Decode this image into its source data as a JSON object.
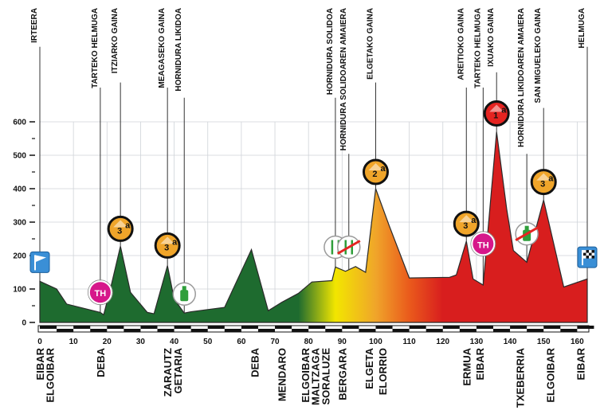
{
  "chart_data": {
    "type": "area",
    "title": "",
    "xlabel": "",
    "ylabel": "",
    "xlim": [
      0,
      163
    ],
    "ylim": [
      0,
      600
    ],
    "x_ticks": [
      0,
      10,
      20,
      30,
      40,
      50,
      60,
      70,
      80,
      90,
      100,
      110,
      120,
      130,
      140,
      150,
      160
    ],
    "y_ticks": [
      0,
      100,
      200,
      300,
      400,
      500,
      600
    ],
    "profile": {
      "x": [
        0,
        5,
        8,
        18,
        19,
        21,
        24,
        27,
        32,
        34,
        38,
        40,
        43,
        45,
        55,
        63,
        68,
        72,
        77,
        81,
        87,
        88,
        91,
        94,
        97,
        100,
        104,
        110,
        122,
        124,
        127,
        129,
        132,
        136,
        139,
        141,
        145,
        150,
        156,
        163
      ],
      "y": [
        123,
        100,
        55,
        30,
        23,
        100,
        228,
        90,
        30,
        26,
        170,
        70,
        28,
        32,
        45,
        218,
        35,
        60,
        87,
        121,
        125,
        166,
        153,
        167,
        150,
        400,
        290,
        133,
        135,
        142,
        243,
        130,
        112,
        570,
        340,
        215,
        180,
        366,
        106,
        130
      ]
    },
    "gradient_colors": [
      "#1e6b2f",
      "#f2e600",
      "#f0a52a",
      "#ea5a1c",
      "#d81e1e"
    ],
    "climb_labels": [
      {
        "x": 0,
        "label": "IRTEERA"
      },
      {
        "x": 18,
        "label": "TARTEKO HELMUGA"
      },
      {
        "x": 24,
        "label": "ITZIARKO GAINA"
      },
      {
        "x": 38,
        "label": "MEAGASEKO GAINA"
      },
      {
        "x": 43,
        "label": "HORNIDURA LIKIDOA"
      },
      {
        "x": 88,
        "label": "HORNIDURA SOLIDOA"
      },
      {
        "x": 92,
        "label": "HORNIDURA SOLIDOAREN AMAIERA"
      },
      {
        "x": 100,
        "label": "ELGETAKO GAINA"
      },
      {
        "x": 127,
        "label": "AREITIOKO GAINA"
      },
      {
        "x": 132,
        "label": "TARTEKO HELMUGA"
      },
      {
        "x": 136,
        "label": "IXUAKO GAINA"
      },
      {
        "x": 145,
        "label": "HORNIDURA LIKIDOAREN AMAIERA"
      },
      {
        "x": 150,
        "label": "SAN MIGUELEKO GAINA"
      },
      {
        "x": 163,
        "label": "HELMUGA"
      }
    ],
    "places": [
      {
        "x": 0,
        "lines": [
          "EIBAR"
        ]
      },
      {
        "x": 3,
        "lines": [
          "ELGOIBAR"
        ]
      },
      {
        "x": 18,
        "lines": [
          "DEBA"
        ]
      },
      {
        "x": 38,
        "lines": [
          "ZARAUTZ"
        ]
      },
      {
        "x": 41,
        "lines": [
          "GETARIA"
        ]
      },
      {
        "x": 64,
        "lines": [
          "DEBA"
        ]
      },
      {
        "x": 72,
        "lines": [
          "MENDARO"
        ]
      },
      {
        "x": 79,
        "lines": [
          "ELGOIBAR"
        ]
      },
      {
        "x": 82,
        "lines": [
          "MALTZAGA"
        ]
      },
      {
        "x": 85,
        "lines": [
          "SORALUZE"
        ]
      },
      {
        "x": 90,
        "lines": [
          "BERGARA"
        ]
      },
      {
        "x": 98,
        "lines": [
          "ELGETA"
        ]
      },
      {
        "x": 102,
        "lines": [
          "ELORRIO"
        ]
      },
      {
        "x": 127,
        "lines": [
          "ERMUA"
        ]
      },
      {
        "x": 131,
        "lines": [
          "EIBAR"
        ]
      },
      {
        "x": 143,
        "lines": [
          "TXEBERRIA"
        ]
      },
      {
        "x": 152,
        "lines": [
          "ELGOIBAR"
        ]
      },
      {
        "x": 161,
        "lines": [
          "EIBAR"
        ]
      }
    ],
    "badges": [
      {
        "x": 24,
        "y": 280,
        "kind": "climb",
        "text": "3",
        "sup": "a",
        "fill": "#f0a52a"
      },
      {
        "x": 38,
        "y": 230,
        "kind": "climb",
        "text": "3",
        "sup": "a",
        "fill": "#f0a52a"
      },
      {
        "x": 100,
        "y": 450,
        "kind": "climb",
        "text": "2",
        "sup": "a",
        "fill": "#f0a52a"
      },
      {
        "x": 127,
        "y": 295,
        "kind": "climb",
        "text": "3",
        "sup": "a",
        "fill": "#f0a52a"
      },
      {
        "x": 136,
        "y": 625,
        "kind": "climb",
        "text": "1",
        "sup": "a",
        "fill": "#e52421"
      },
      {
        "x": 150,
        "y": 420,
        "kind": "climb",
        "text": "3",
        "sup": "a",
        "fill": "#f0a52a"
      },
      {
        "x": 18,
        "y": 90,
        "kind": "sprint",
        "text": "TH",
        "fill": "#d6178a"
      },
      {
        "x": 132,
        "y": 235,
        "kind": "sprint",
        "text": "TH",
        "fill": "#d6178a"
      },
      {
        "x": 43,
        "y": 85,
        "kind": "bottle"
      },
      {
        "x": 88,
        "y": 225,
        "kind": "food"
      },
      {
        "x": 92,
        "y": 225,
        "kind": "food-end"
      },
      {
        "x": 145,
        "y": 265,
        "kind": "bottle-end"
      },
      {
        "x": 0,
        "y": 180,
        "kind": "start-flag"
      },
      {
        "x": 163,
        "y": 195,
        "kind": "finish-flag"
      }
    ]
  }
}
